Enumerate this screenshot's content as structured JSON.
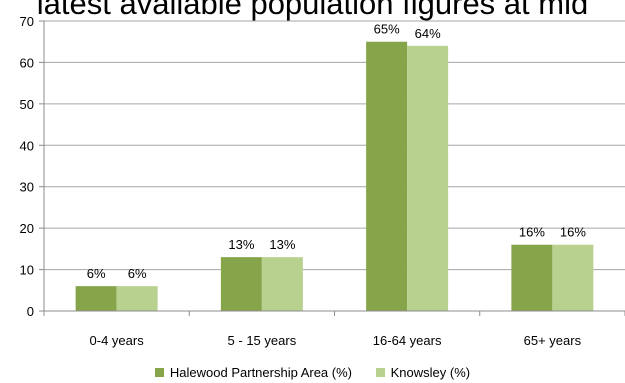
{
  "title": "latest available population figures at mid",
  "chart_data": {
    "type": "bar",
    "categories": [
      "0-4 years",
      "5 - 15 years",
      "16-64 years",
      "65+ years"
    ],
    "series": [
      {
        "name": "Halewood Partnership Area (%)",
        "values": [
          6,
          13,
          65,
          16
        ],
        "labels": [
          "6%",
          "13%",
          "65%",
          "16%"
        ],
        "color": "#86a54b"
      },
      {
        "name": "Knowsley (%)",
        "values": [
          6,
          13,
          64,
          16
        ],
        "labels": [
          "6%",
          "13%",
          "64%",
          "16%"
        ],
        "color": "#b9d18e"
      }
    ],
    "ylim": [
      0,
      70
    ],
    "yticks": [
      0,
      10,
      20,
      30,
      40,
      50,
      60,
      70
    ],
    "grid": true,
    "legend": "bottom"
  }
}
